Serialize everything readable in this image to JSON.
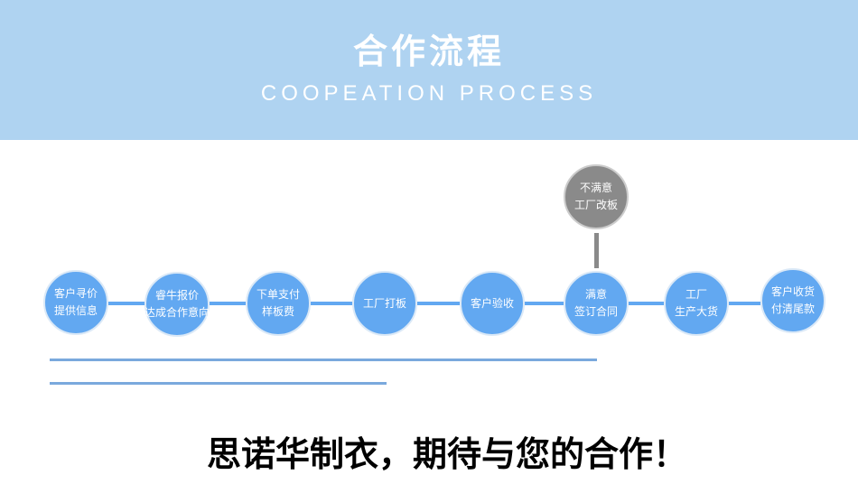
{
  "header": {
    "title": "合作流程",
    "subtitle": "COOPEATION PROCESS"
  },
  "steps": [
    {
      "line1": "客户寻价",
      "line2": "提供信息"
    },
    {
      "line1": "睿牛报价",
      "line2": "达成合作意向"
    },
    {
      "line1": "下单支付",
      "line2": "样板费"
    },
    {
      "line1": "工厂打板",
      "line2": ""
    },
    {
      "line1": "客户验收",
      "line2": ""
    },
    {
      "line1": "满意",
      "line2": "签订合同"
    },
    {
      "line1": "工厂",
      "line2": "生产大货"
    },
    {
      "line1": "客户收货",
      "line2": "付清尾款"
    }
  ],
  "branch": {
    "line1": "不满意",
    "line2": "工厂改板"
  },
  "slogan": "思诺华制衣，期待与您的合作！",
  "colors": {
    "header": "#afd3f1",
    "step": "#62a8f1",
    "branch": "#8a8a8a"
  }
}
